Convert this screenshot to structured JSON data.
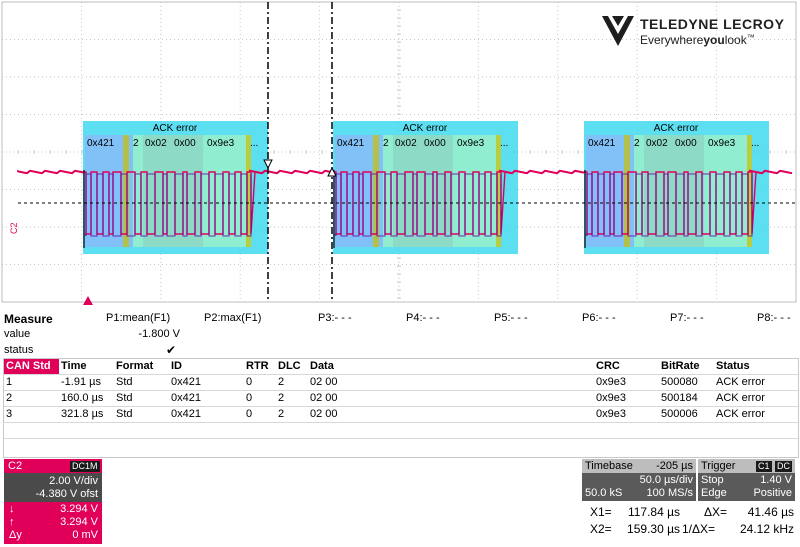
{
  "brand": {
    "name": "TELEDYNE LECROY",
    "tagline_a": "Everywhere",
    "tagline_b": "you",
    "tagline_c": "look",
    "tm": "™"
  },
  "waveform": {
    "channel_label": "C2",
    "color": "#e0005a",
    "decode_color": "#6000a0",
    "frames": [
      {
        "title": "ACK error",
        "fields": [
          "0x421",
          "2",
          "0x02",
          "0x00",
          "0x9e3",
          "..."
        ]
      },
      {
        "title": "ACK error",
        "fields": [
          "0x421",
          "2",
          "0x02",
          "0x00",
          "0x9e3",
          "..."
        ]
      },
      {
        "title": "ACK error",
        "fields": [
          "0x421",
          "2",
          "0x02",
          "0x00",
          "0x9e3",
          "..."
        ]
      }
    ]
  },
  "measure": {
    "label": "Measure",
    "value_label": "value",
    "status_label": "status",
    "params": [
      {
        "name": "P1:mean(F1)",
        "value": "-1.800 V",
        "status": "✔"
      },
      {
        "name": "P2:max(F1)",
        "value": "",
        "status": ""
      },
      {
        "name": "P3:- - -",
        "value": "",
        "status": ""
      },
      {
        "name": "P4:- - -",
        "value": "",
        "status": ""
      },
      {
        "name": "P5:- - -",
        "value": "",
        "status": ""
      },
      {
        "name": "P6:- - -",
        "value": "",
        "status": ""
      },
      {
        "name": "P7:- - -",
        "value": "",
        "status": ""
      },
      {
        "name": "P8:- - -",
        "value": "",
        "status": ""
      }
    ]
  },
  "table": {
    "columns": [
      "CAN Std",
      "Time",
      "Format",
      "ID",
      "RTR",
      "DLC",
      "Data",
      "CRC",
      "BitRate",
      "Status"
    ],
    "rows": [
      [
        "1",
        "-1.91 µs",
        "Std",
        "0x421",
        "0",
        "2",
        "02 00",
        "0x9e3",
        "500080",
        "ACK error"
      ],
      [
        "2",
        "160.0 µs",
        "Std",
        "0x421",
        "0",
        "2",
        "02 00",
        "0x9e3",
        "500184",
        "ACK error"
      ],
      [
        "3",
        "321.8 µs",
        "Std",
        "0x421",
        "0",
        "2",
        "02 00",
        "0x9e3",
        "500006",
        "ACK error"
      ]
    ]
  },
  "channel": {
    "name": "C2",
    "coupling": "DC1M",
    "vdiv": "2.00 V/div",
    "offset": "-4.380 V ofst",
    "c1": "3.294 V",
    "c2": "3.294 V",
    "delta_label": "Δy",
    "delta": "0 mV",
    "down_arrow": "↓",
    "up_arrow": "↑"
  },
  "timebase": {
    "label": "Timebase",
    "delay": "-205 µs",
    "tdiv": "50.0 µs/div",
    "samples": "50.0 kS",
    "rate": "100 MS/s"
  },
  "trigger": {
    "label": "Trigger",
    "source": "C1",
    "coupling": "DC",
    "mode": "Stop",
    "level": "1.40 V",
    "type": "Edge",
    "slope": "Positive"
  },
  "cursors": {
    "x1_label": "X1=",
    "x1": "117.84 µs",
    "x2_label": "X2=",
    "x2": "159.30 µs",
    "dx_label": "ΔX=",
    "dx": "41.46 µs",
    "inv_label": "1/ΔX=",
    "inv": "24.12 kHz"
  }
}
